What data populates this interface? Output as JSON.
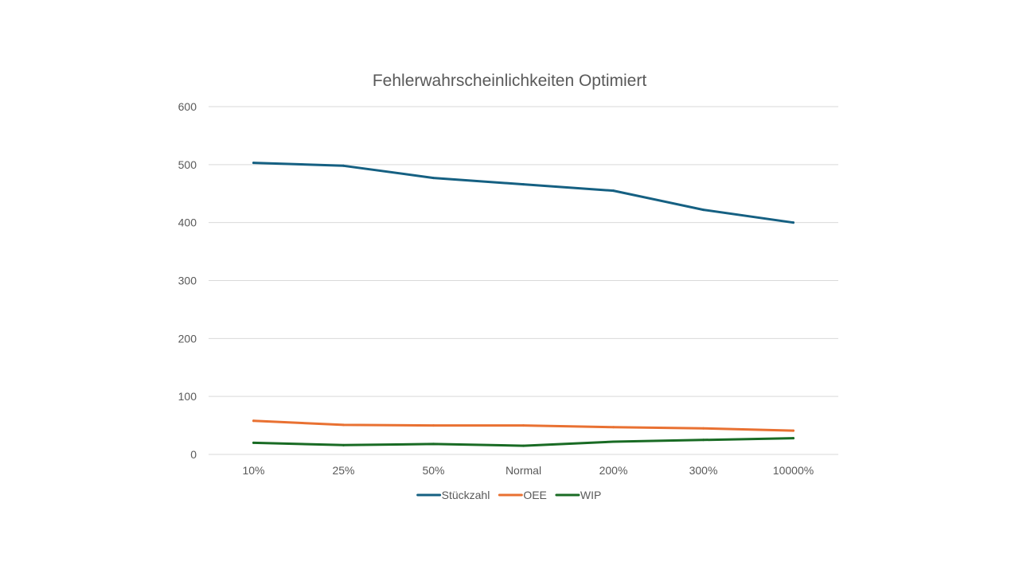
{
  "chart_data": {
    "type": "line",
    "title": "Fehlerwahrscheinlichkeiten Optimiert",
    "categories": [
      "10%",
      "25%",
      "50%",
      "Normal",
      "200%",
      "300%",
      "10000%"
    ],
    "ylim": [
      0,
      600
    ],
    "yticks": [
      0,
      100,
      200,
      300,
      400,
      500,
      600
    ],
    "grid": true,
    "legend_position": "bottom",
    "series": [
      {
        "name": "Stückzahl",
        "color": "#156082",
        "values": [
          503,
          498,
          477,
          466,
          455,
          422,
          400
        ]
      },
      {
        "name": "OEE",
        "color": "#E97132",
        "values": [
          58,
          51,
          50,
          50,
          47,
          45,
          41
        ]
      },
      {
        "name": "WIP",
        "color": "#196B24",
        "values": [
          20,
          16,
          18,
          15,
          22,
          25,
          28
        ]
      }
    ]
  }
}
